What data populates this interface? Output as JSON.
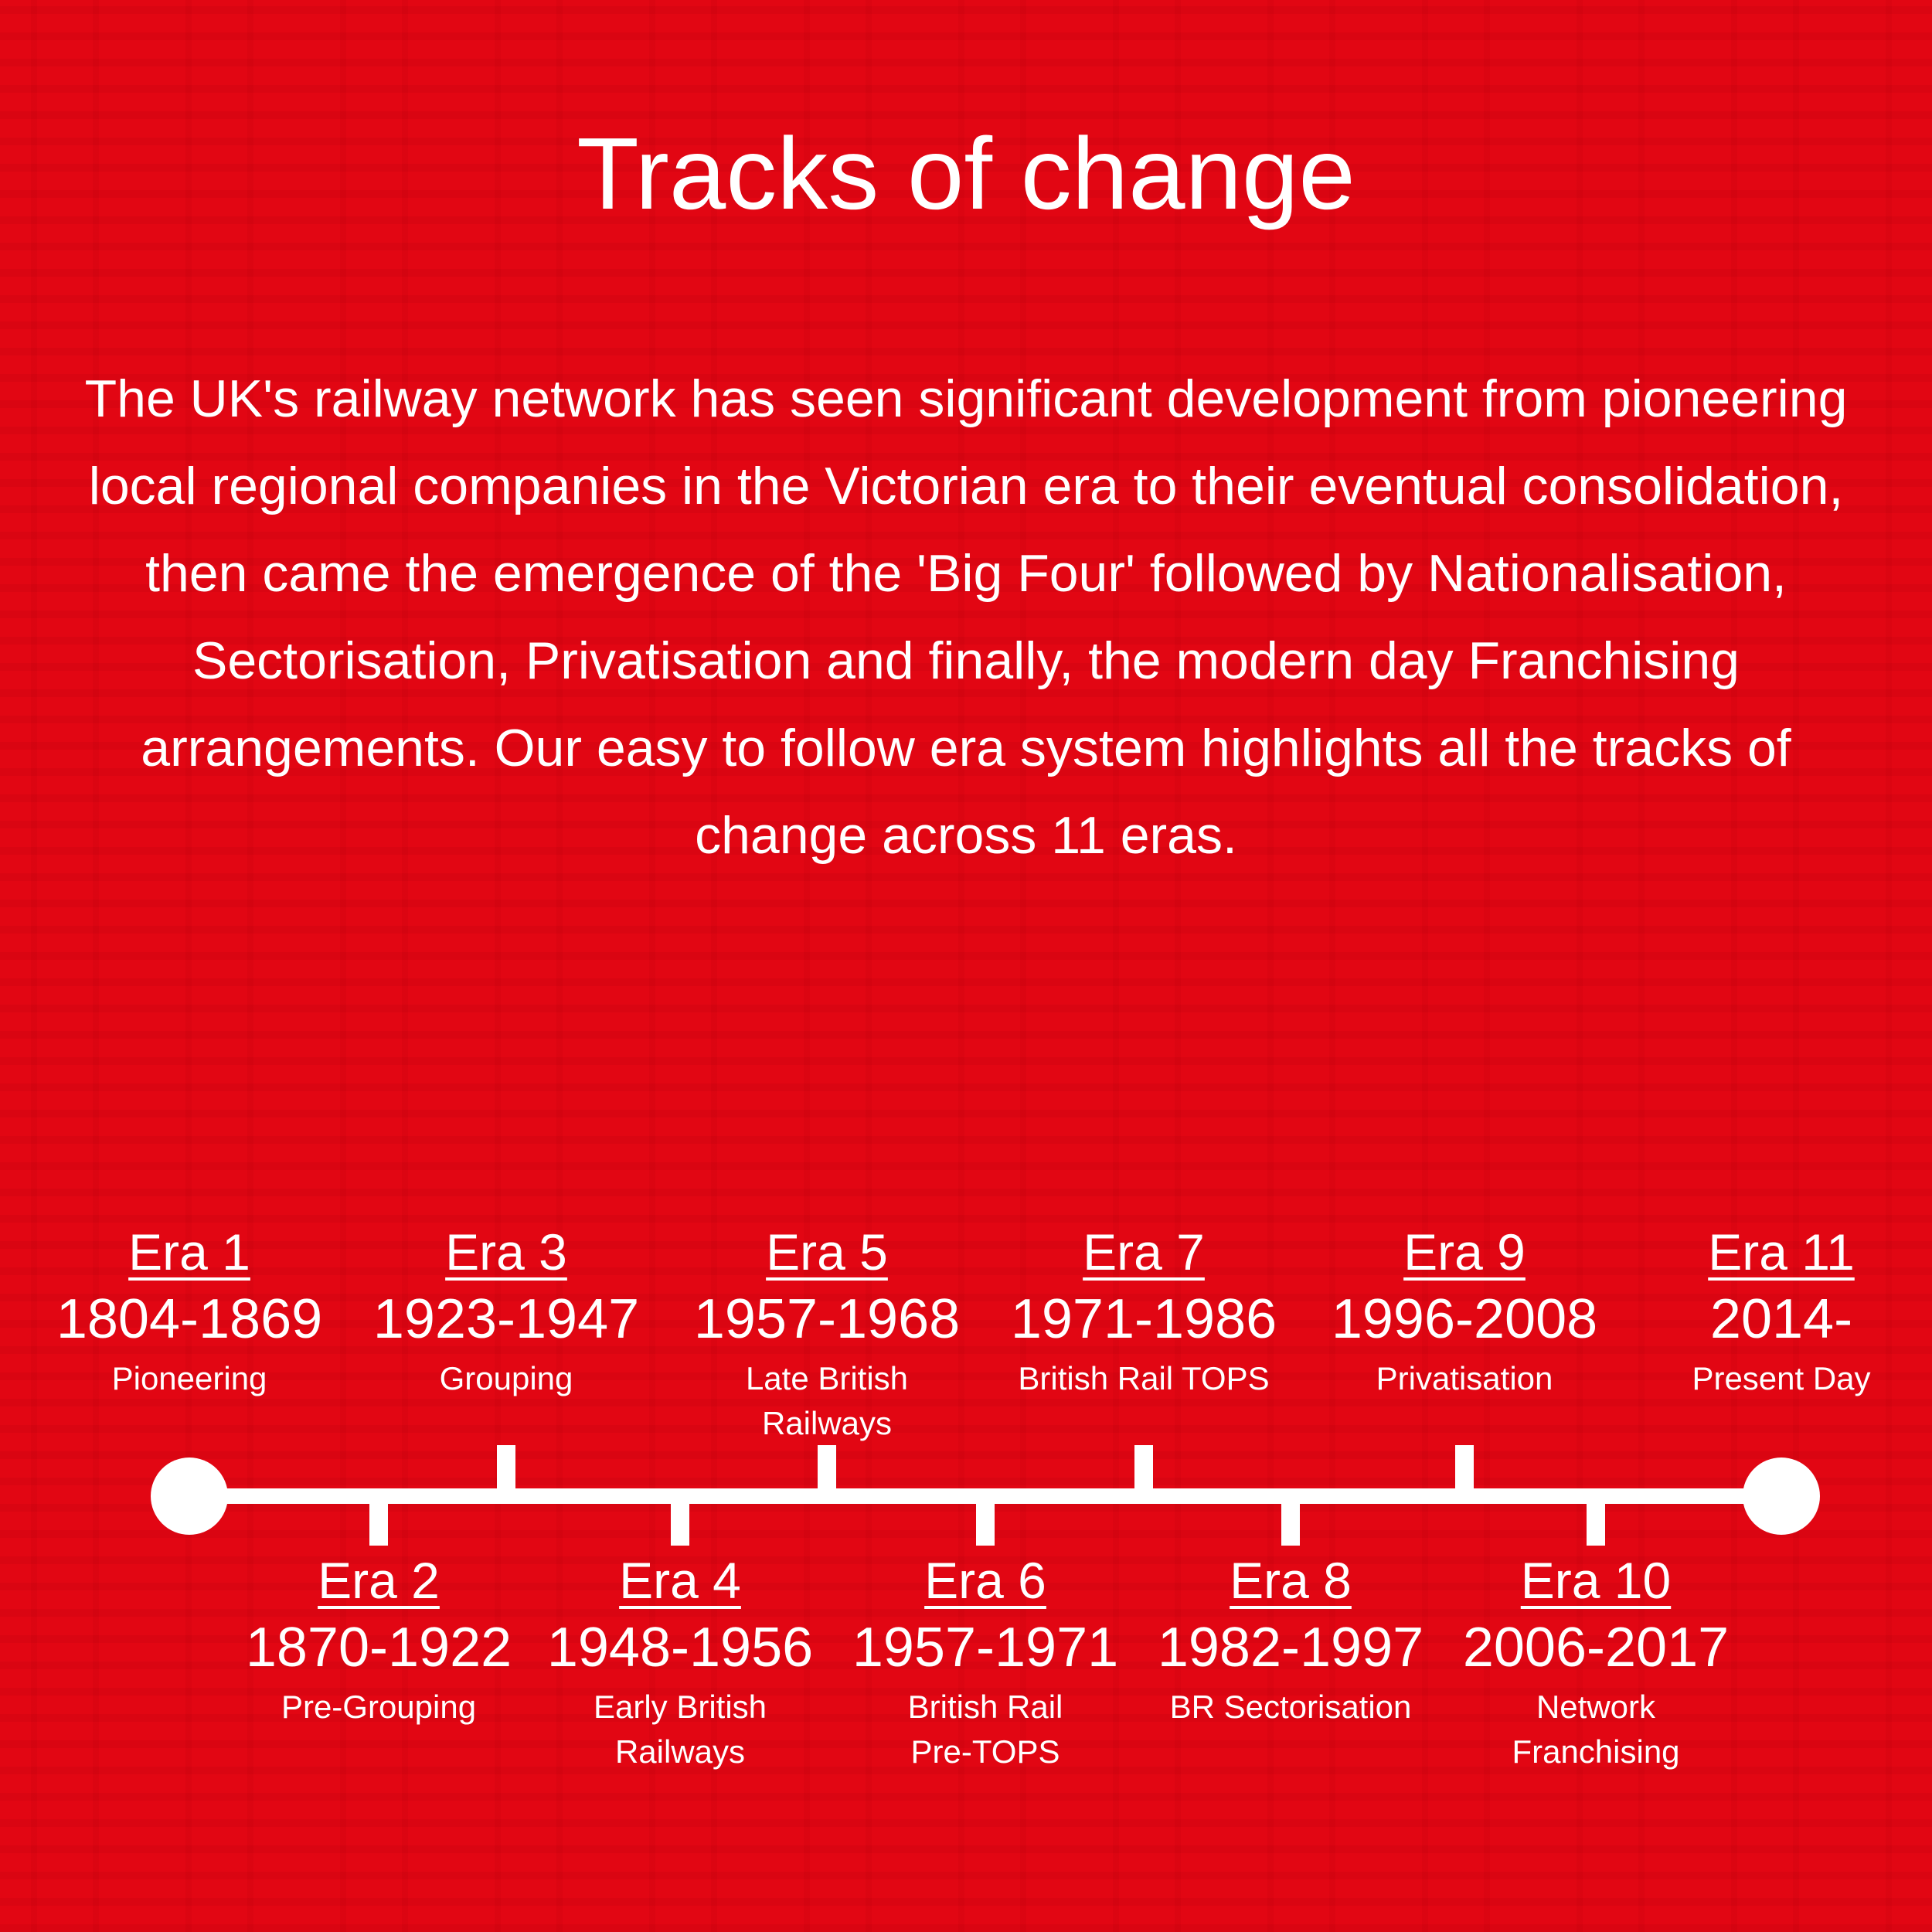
{
  "title": "Tracks of change",
  "intro": "The UK's railway network has seen significant development from pioneering local regional companies in the Victorian era to their eventual consolidation, then came the emergence of the 'Big Four' followed by Nationalisation, Sectorisation, Privatisation and finally, the modern day Franchising arrangements. Our easy to follow era system highlights all the tracks of change across 11 eras.",
  "colors": {
    "background": "#e20613",
    "foreground": "#ffffff"
  },
  "eras": [
    {
      "label": "Era 1",
      "years": "1804-1869",
      "name": "Pioneering"
    },
    {
      "label": "Era 2",
      "years": "1870-1922",
      "name": "Pre-Grouping"
    },
    {
      "label": "Era 3",
      "years": "1923-1947",
      "name": "Grouping"
    },
    {
      "label": "Era 4",
      "years": "1948-1956",
      "name": "Early British Railways"
    },
    {
      "label": "Era 5",
      "years": "1957-1968",
      "name": "Late British Railways"
    },
    {
      "label": "Era 6",
      "years": "1957-1971",
      "name": "British Rail Pre-TOPS"
    },
    {
      "label": "Era 7",
      "years": "1971-1986",
      "name": "British Rail TOPS"
    },
    {
      "label": "Era 8",
      "years": "1982-1997",
      "name": "BR Sectorisation"
    },
    {
      "label": "Era 9",
      "years": "1996-2008",
      "name": "Privatisation"
    },
    {
      "label": "Era 10",
      "years": "2006-2017",
      "name": "Network Franchising"
    },
    {
      "label": "Era 11",
      "years": "2014-",
      "name": "Present Day"
    }
  ]
}
